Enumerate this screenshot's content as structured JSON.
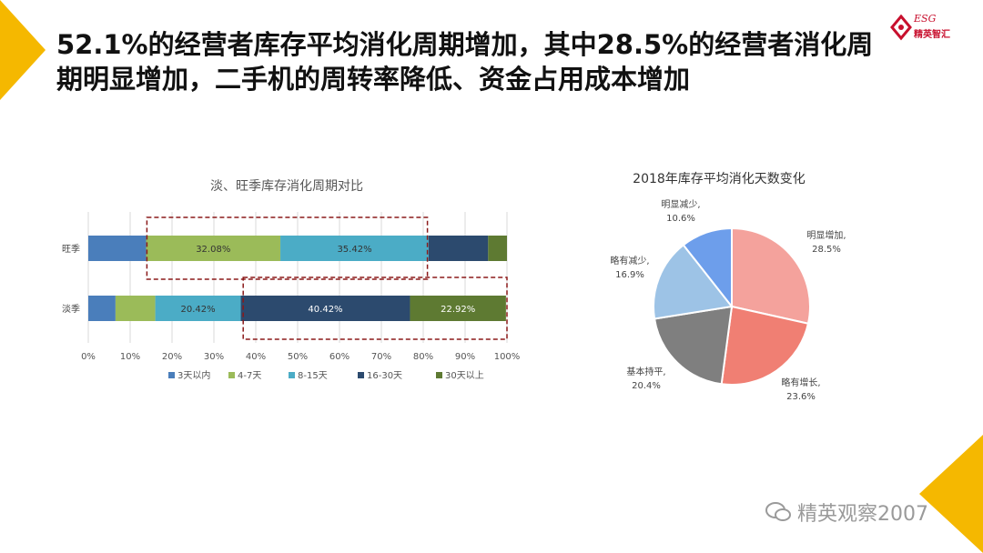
{
  "headline": "52.1%的经营者库存平均消化周期增加，其中28.5%的经营者消化周期明显增加，二手机的周转率降低、资金占用成本增加",
  "logo": {
    "en": "ESG",
    "zh": "精英智汇"
  },
  "watermark": "精英观察2007",
  "colors": {
    "accent_yellow": "#f5b800",
    "logo_red": "#c8102e",
    "highlight_box": "#8b1a1a"
  },
  "chart_data": [
    {
      "type": "bar",
      "orientation": "horizontal",
      "stacked": "percent",
      "title": "淡、旺季库存消化周期对比",
      "categories": [
        "旺季",
        "淡季"
      ],
      "series": [
        {
          "name": "3天以内",
          "color": "#4a7ebb",
          "values": [
            13.8,
            6.5
          ]
        },
        {
          "name": "4-7天",
          "color": "#9bbb59",
          "values": [
            32.08,
            9.5
          ]
        },
        {
          "name": "8-15天",
          "color": "#4bacc6",
          "values": [
            35.42,
            20.42
          ]
        },
        {
          "name": "16-30天",
          "color": "#2c4a6e",
          "values": [
            14.2,
            40.42
          ]
        },
        {
          "name": "30天以上",
          "color": "#5e7a32",
          "values": [
            4.5,
            22.92
          ]
        }
      ],
      "data_labels": [
        {
          "category": "旺季",
          "series": "4-7天",
          "text": "32.08%"
        },
        {
          "category": "旺季",
          "series": "8-15天",
          "text": "35.42%"
        },
        {
          "category": "淡季",
          "series": "8-15天",
          "text": "20.42%"
        },
        {
          "category": "淡季",
          "series": "16-30天",
          "text": "40.42%"
        },
        {
          "category": "淡季",
          "series": "30天以上",
          "text": "22.92%"
        }
      ],
      "x_ticks": [
        "0%",
        "10%",
        "20%",
        "30%",
        "40%",
        "50%",
        "60%",
        "70%",
        "80%",
        "90%",
        "100%"
      ],
      "xlim": [
        0,
        100
      ],
      "grid": true,
      "legend": "bottom",
      "highlights": [
        {
          "category": "旺季",
          "from": 14,
          "to": 81
        },
        {
          "category": "淡季",
          "from": 37,
          "to": 100
        }
      ]
    },
    {
      "type": "pie",
      "title": "2018年库存平均消化天数变化",
      "slices": [
        {
          "label": "明显增加,",
          "value": 28.5,
          "text": "28.5%",
          "color": "#f4a29c"
        },
        {
          "label": "略有增长,",
          "value": 23.6,
          "text": "23.6%",
          "color": "#f07f73"
        },
        {
          "label": "基本持平,",
          "value": 20.4,
          "text": "20.4%",
          "color": "#7f7f7f"
        },
        {
          "label": "略有减少,",
          "value": 16.9,
          "text": "16.9%",
          "color": "#9dc3e6"
        },
        {
          "label": "明显减少,",
          "value": 10.6,
          "text": "10.6%",
          "color": "#6d9eeb"
        }
      ]
    }
  ]
}
